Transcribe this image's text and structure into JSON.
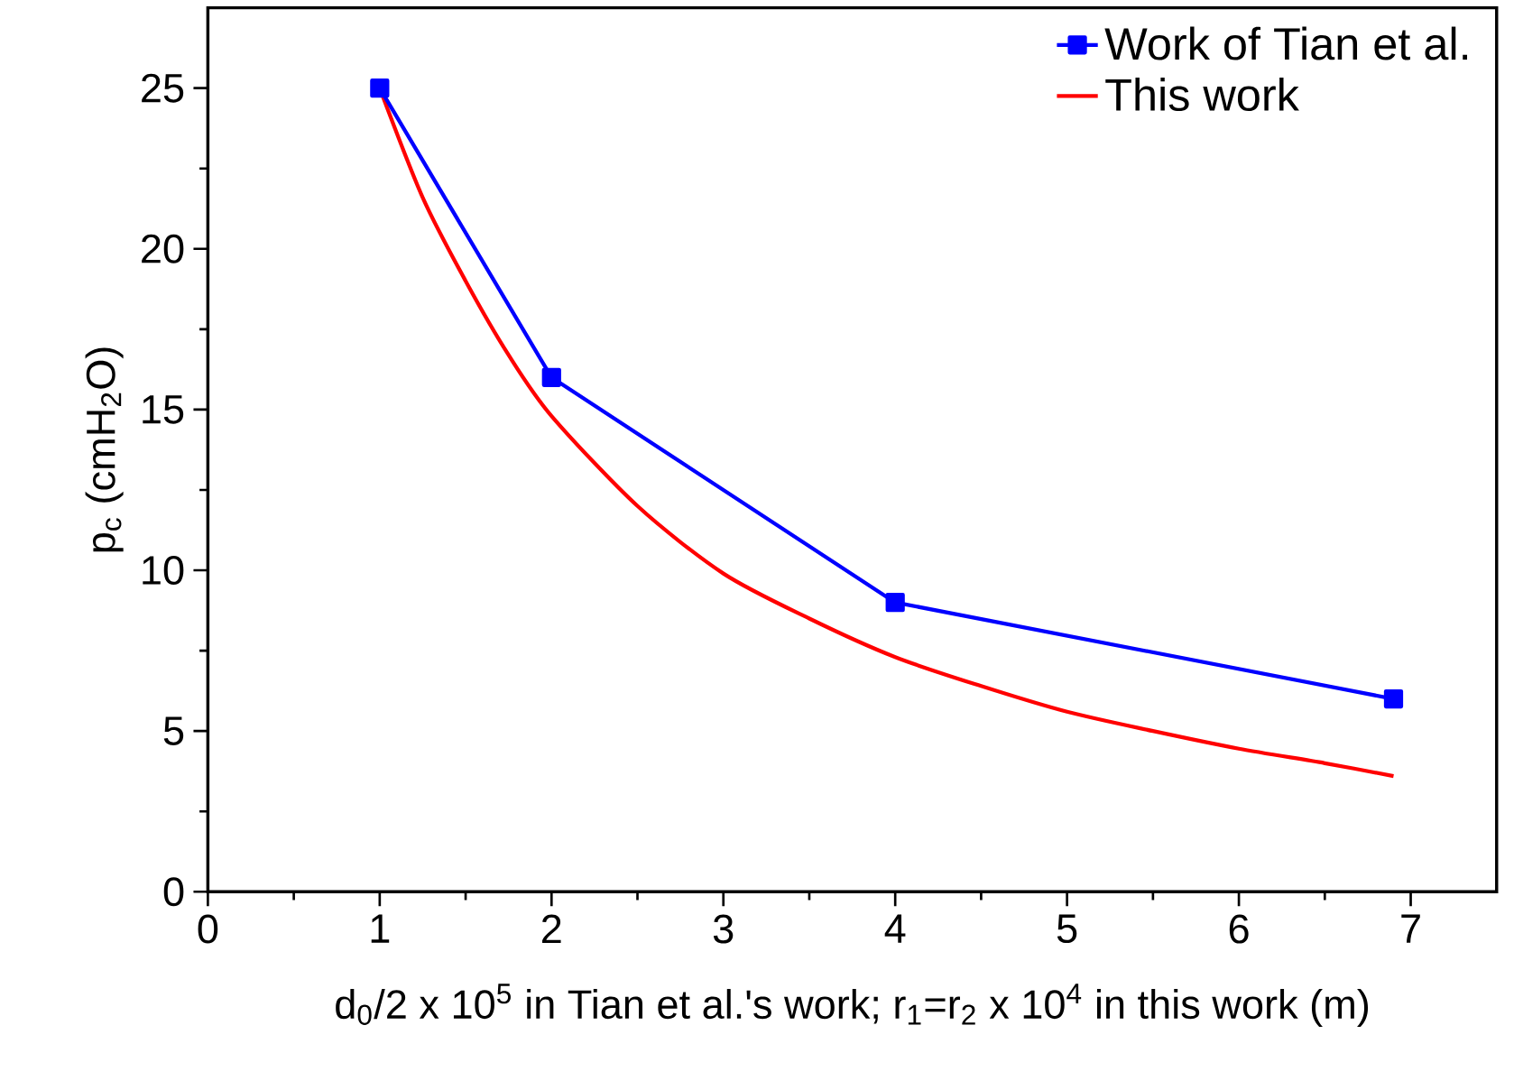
{
  "chart_data": {
    "type": "line",
    "xlabel": "d$_{0}$/2 x 10$^{5}$ in Tian et al.'s work; r$_{1}$=r$_{2}$ x 10$^{4}$ in this work (m)",
    "ylabel": "p$_{c}$ (cmH$_{2}$O)",
    "xlim": [
      0,
      7.5
    ],
    "ylim": [
      0,
      27.5
    ],
    "xticks": [
      0,
      1,
      2,
      3,
      4,
      5,
      6,
      7
    ],
    "yticks": [
      0,
      5,
      10,
      15,
      20,
      25
    ],
    "grid": false,
    "legend": "top right",
    "series": [
      {
        "name": "Work of Tian et al.",
        "color": "#0000ff",
        "marker": "square",
        "x": [
          1,
          2,
          4,
          6.9
        ],
        "values": [
          25,
          16,
          9,
          6
        ]
      },
      {
        "name": "This work",
        "color": "#ff0000",
        "marker": "none",
        "x": [
          1,
          1.25,
          1.5,
          1.75,
          2,
          2.5,
          3,
          3.5,
          4,
          4.5,
          5,
          5.5,
          6,
          6.5,
          6.9
        ],
        "values": [
          25,
          21.6,
          19.0,
          16.7,
          14.8,
          12.0,
          9.9,
          8.5,
          7.3,
          6.4,
          5.6,
          5.0,
          4.45,
          4.0,
          3.6
        ]
      }
    ]
  }
}
